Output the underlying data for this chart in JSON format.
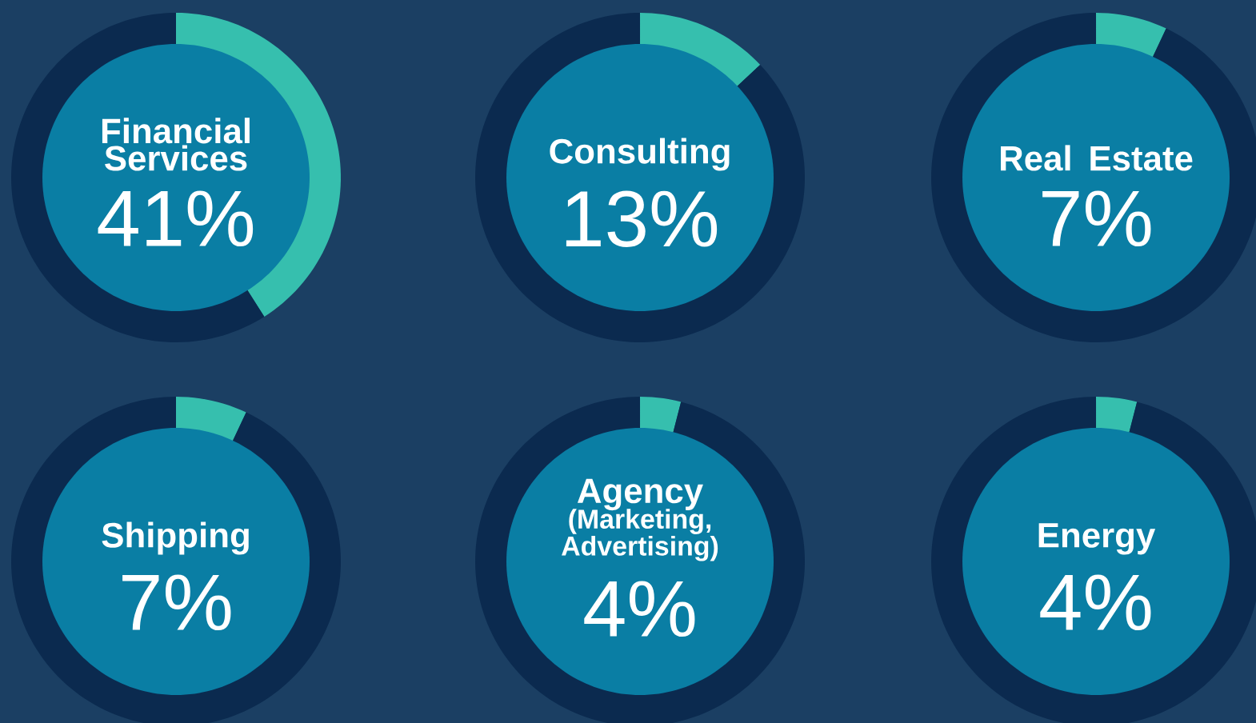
{
  "chart_data": [
    {
      "type": "donut",
      "title": "Financial Services",
      "categories": [
        null,
        null
      ],
      "values": [
        41,
        59
      ],
      "colors": [
        "#36bfae",
        "#0b2a4f"
      ],
      "annotations": [
        "41%"
      ]
    },
    {
      "type": "donut",
      "title": "Consulting",
      "categories": [
        null,
        null
      ],
      "values": [
        13,
        87
      ],
      "colors": [
        "#36bfae",
        "#0b2a4f"
      ],
      "annotations": [
        "13%"
      ]
    },
    {
      "type": "donut",
      "title": "Real Estate",
      "categories": [
        null,
        null
      ],
      "values": [
        7,
        93
      ],
      "colors": [
        "#36bfae",
        "#0b2a4f"
      ],
      "annotations": [
        "7%"
      ]
    },
    {
      "type": "donut",
      "title": "Shipping",
      "categories": [
        null,
        null
      ],
      "values": [
        7,
        93
      ],
      "colors": [
        "#36bfae",
        "#0b2a4f"
      ],
      "annotations": [
        "7%"
      ]
    },
    {
      "type": "donut",
      "title": "Agency",
      "subtitle": "(Marketing, Advertising)",
      "categories": [
        null,
        null
      ],
      "values": [
        4,
        96
      ],
      "colors": [
        "#36bfae",
        "#0b2a4f"
      ],
      "annotations": [
        "4%"
      ]
    },
    {
      "type": "donut",
      "title": "Energy",
      "categories": [
        null,
        null
      ],
      "values": [
        4,
        96
      ],
      "colors": [
        "#36bfae",
        "#0b2a4f"
      ],
      "annotations": [
        "4%"
      ]
    }
  ]
}
